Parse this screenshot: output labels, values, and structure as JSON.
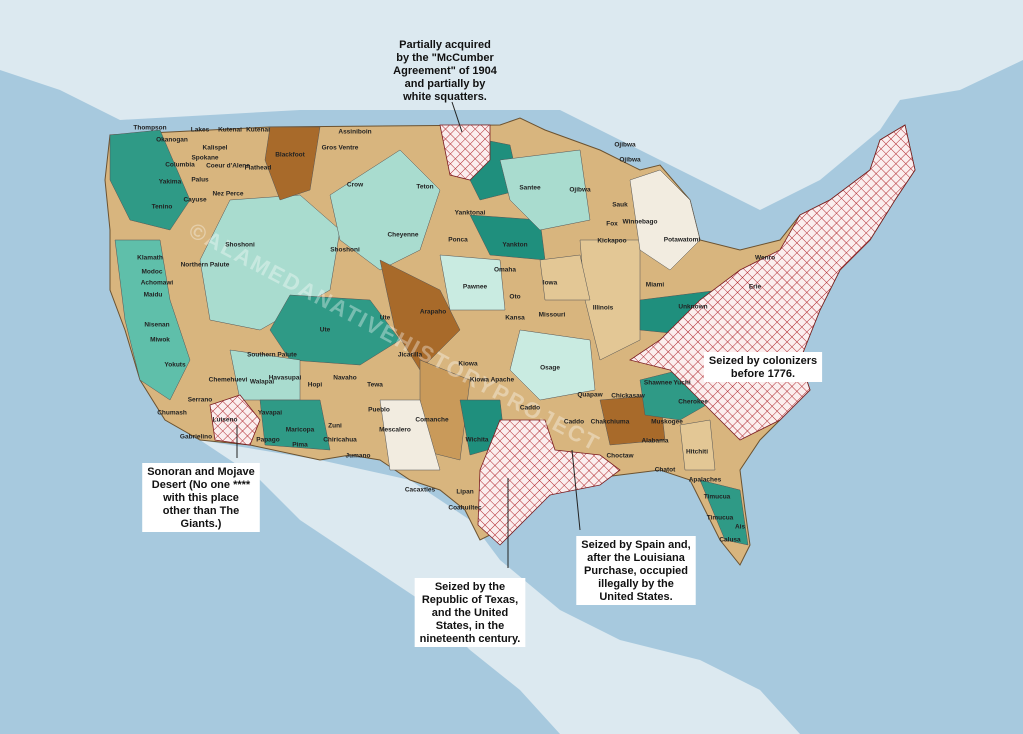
{
  "watermark": "©ALAMEDANATIVEHISTORYPROJECT",
  "annotations": [
    {
      "lines": [
        "Partially acquired",
        "by the \"McCumber",
        "Agreement\" of 1904",
        "and partially by",
        "white squatters."
      ]
    },
    {
      "lines": [
        "Seized by colonizers",
        "before 1776."
      ]
    },
    {
      "lines": [
        "Sonoran and Mojave",
        "Desert (No one ****",
        "with this place",
        "other than The",
        "Giants.)"
      ]
    },
    {
      "lines": [
        "Seized by the",
        "Republic of Texas,",
        "and the United",
        "States, in the",
        "nineteenth century."
      ]
    },
    {
      "lines": [
        "Seized by Spain and,",
        "after the Louisiana",
        "Purchase, occupied",
        "illegally by the",
        "United States."
      ]
    }
  ],
  "tribes": [
    "Thompson",
    "Okanogan",
    "Lakes",
    "Kutenai",
    "Kutenai",
    "Assiniboin",
    "Gros Ventre",
    "Blackfoot",
    "Flathead",
    "Columbia",
    "Spokane",
    "Kalispel",
    "Coeur d'Alene",
    "Yakima",
    "Palus",
    "Nez Perce",
    "Tenino",
    "Cayuse",
    "Crow",
    "Teton",
    "Santee",
    "Ojibwa",
    "Ojibwa",
    "Ojibwa",
    "Yanktonai",
    "Yankton",
    "Ponca",
    "Omaha",
    "Cheyenne",
    "Shoshoni",
    "Shoshoni",
    "Northern Paiute",
    "Klamath",
    "Modoc",
    "Achomawi",
    "Maidu",
    "Nisenan",
    "Miwok",
    "Yokuts",
    "Ute",
    "Ute",
    "Arapaho",
    "Pawnee",
    "Oto",
    "Kansa",
    "Missouri",
    "Iowa",
    "Illinois",
    "Fox",
    "Sauk",
    "Kickapoo",
    "Winnebago",
    "Potawatomi",
    "Miami",
    "Erie",
    "Wenro",
    "Unknown",
    "Southern Paiute",
    "Chemehuevi",
    "Walapai",
    "Havasupai",
    "Hopi",
    "Navaho",
    "Jicarilla",
    "Tewa",
    "Zuni",
    "Pueblo",
    "Mescalero",
    "Jumano",
    "Kiowa",
    "Kiowa Apache",
    "Osage",
    "Quapaw",
    "Chickasaw",
    "Shawnee",
    "Yuchi",
    "Cherokee",
    "Caddo",
    "Caddo",
    "Chakchiuma",
    "Choctaw",
    "Alabama",
    "Muskogee",
    "Hitchiti",
    "Chatot",
    "Apalaches",
    "Timucua",
    "Timucua",
    "Ais",
    "Calusa",
    "Comanche",
    "Wichita",
    "Lipan",
    "Coahuiltec",
    "Cacaxtles",
    "Chumash",
    "Gabrielino",
    "Serrano",
    "Yavapai",
    "Maricopa",
    "Papago",
    "Pima",
    "Chiricahua",
    "Luiseno"
  ]
}
